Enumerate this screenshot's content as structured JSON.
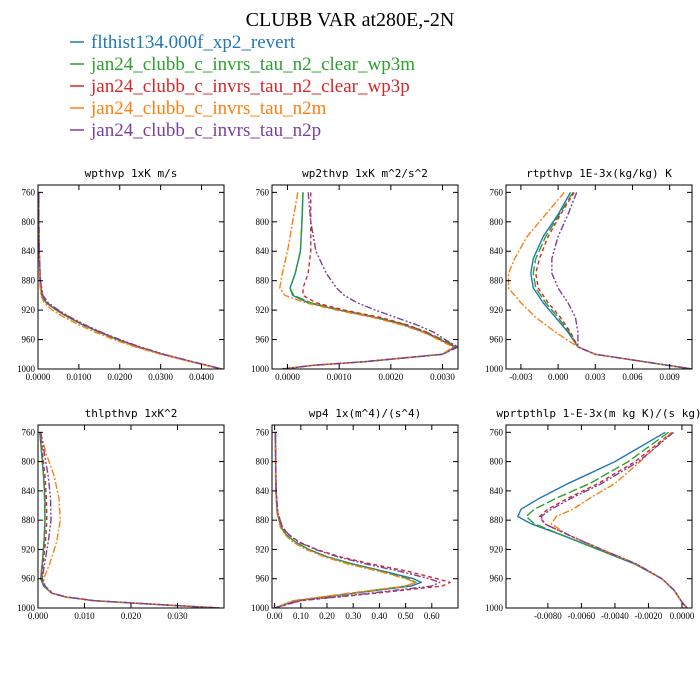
{
  "figure": {
    "title": "CLUBB VAR at280E,-2N",
    "legend": [
      {
        "label": "flthist134.000f_xp2_revert",
        "color": "#1f77b4",
        "dash": "solid"
      },
      {
        "label": "jan24_clubb_c_invrs_tau_n2_clear_wp3m",
        "color": "#2ca02c",
        "dash": "longdash"
      },
      {
        "label": "jan24_clubb_c_invrs_tau_n2_clear_wp3p",
        "color": "#d62728",
        "dash": "dash"
      },
      {
        "label": "jan24_clubb_c_invrs_tau_n2m",
        "color": "#ff7f0e",
        "dash": "dashdot"
      },
      {
        "label": "jan24_clubb_c_invrs_tau_n2p",
        "color": "#7b3fa0",
        "dash": "dashdotdot"
      }
    ]
  },
  "chart_data": [
    {
      "type": "line",
      "title": "wpthvp  1xK m/s",
      "xlim": [
        0,
        0.0455
      ],
      "ylim": [
        1000,
        750
      ],
      "xticks": [
        0,
        0.01,
        0.02,
        0.03,
        0.04
      ],
      "xticklabels": [
        "0.0000",
        "0.0100",
        "0.0200",
        "0.0300",
        "0.0400"
      ],
      "yticks": [
        760,
        800,
        840,
        880,
        920,
        960,
        1000
      ],
      "pressure": [
        760,
        800,
        840,
        880,
        900,
        910,
        920,
        930,
        940,
        950,
        960,
        970,
        980,
        990,
        1000
      ],
      "series": [
        {
          "values": [
            0.0002,
            0.0002,
            0.0003,
            0.0005,
            0.0009,
            0.002,
            0.0045,
            0.0075,
            0.011,
            0.015,
            0.0195,
            0.0245,
            0.0305,
            0.0375,
            0.045
          ]
        },
        {
          "values": [
            0.0002,
            0.0002,
            0.0003,
            0.0005,
            0.001,
            0.0021,
            0.0045,
            0.0075,
            0.011,
            0.015,
            0.0195,
            0.0245,
            0.0305,
            0.0375,
            0.045
          ]
        },
        {
          "values": [
            0.0002,
            0.0002,
            0.0003,
            0.0006,
            0.0011,
            0.0022,
            0.0047,
            0.0078,
            0.0112,
            0.0152,
            0.0197,
            0.0247,
            0.0307,
            0.0377,
            0.045
          ]
        },
        {
          "values": [
            0.0002,
            0.0002,
            0.0003,
            0.0004,
            0.0007,
            0.0015,
            0.0035,
            0.0065,
            0.01,
            0.014,
            0.0185,
            0.0238,
            0.03,
            0.0372,
            0.045
          ]
        },
        {
          "values": [
            0.0002,
            0.0002,
            0.0003,
            0.0006,
            0.0012,
            0.0025,
            0.005,
            0.008,
            0.0115,
            0.0155,
            0.02,
            0.025,
            0.0308,
            0.0378,
            0.045
          ]
        }
      ]
    },
    {
      "type": "line",
      "title": "wp2thvp  1xK m^2/s^2",
      "xlim": [
        -0.0003,
        0.0033
      ],
      "ylim": [
        1000,
        750
      ],
      "xticks": [
        0,
        0.001,
        0.002,
        0.003
      ],
      "xticklabels": [
        "0.0000",
        "0.0010",
        "0.0020",
        "0.0030"
      ],
      "yticks": [
        760,
        800,
        840,
        880,
        920,
        960,
        1000
      ],
      "pressure": [
        760,
        800,
        840,
        870,
        890,
        900,
        910,
        920,
        930,
        940,
        950,
        960,
        970,
        980,
        990,
        995,
        1000
      ],
      "series": [
        {
          "values": [
            0.0003,
            0.00028,
            0.00025,
            0.00015,
            5e-05,
            0.0001,
            0.0004,
            0.001,
            0.0017,
            0.00225,
            0.00265,
            0.00295,
            0.00325,
            0.003,
            0.0015,
            0.0005,
            -0.0001
          ]
        },
        {
          "values": [
            0.0003,
            0.00028,
            0.00025,
            0.00015,
            5e-05,
            0.00012,
            0.00045,
            0.00105,
            0.00175,
            0.0023,
            0.0027,
            0.003,
            0.0033,
            0.003,
            0.0015,
            0.0005,
            -0.0001
          ]
        },
        {
          "values": [
            0.00045,
            0.00045,
            0.00045,
            0.0004,
            0.0003,
            0.0003,
            0.00055,
            0.0011,
            0.0018,
            0.00232,
            0.00268,
            0.00295,
            0.00325,
            0.003,
            0.0015,
            0.0005,
            -0.0001
          ]
        },
        {
          "values": [
            0.0002,
            0.0001,
            0.0,
            -0.0001,
            -0.00015,
            -5e-05,
            0.00035,
            0.00095,
            0.00165,
            0.0022,
            0.00262,
            0.00292,
            0.0032,
            0.003,
            0.0015,
            0.0005,
            -0.0001
          ]
        },
        {
          "values": [
            0.0004,
            0.00045,
            0.00055,
            0.00075,
            0.00095,
            0.0011,
            0.00135,
            0.0017,
            0.0021,
            0.0025,
            0.00283,
            0.00305,
            0.0033,
            0.003,
            0.0015,
            0.0005,
            -0.0001
          ]
        }
      ]
    },
    {
      "type": "line",
      "title": "rtpthvp  1E-3x(kg/kg) K",
      "xlim": [
        -0.0042,
        0.0108
      ],
      "ylim": [
        1000,
        750
      ],
      "xticks": [
        -0.003,
        0,
        0.003,
        0.006,
        0.009
      ],
      "xticklabels": [
        "-0.003",
        "0.000",
        "0.003",
        "0.006",
        "0.009"
      ],
      "yticks": [
        760,
        800,
        840,
        880,
        920,
        960,
        1000
      ],
      "pressure": [
        760,
        790,
        820,
        850,
        870,
        890,
        910,
        930,
        950,
        970,
        980,
        1000
      ],
      "series": [
        {
          "values": [
            0.001,
            0.0,
            -0.0012,
            -0.002,
            -0.0022,
            -0.002,
            -0.0012,
            -0.0002,
            0.0008,
            0.0016,
            0.003,
            0.0108
          ]
        },
        {
          "values": [
            0.0012,
            0.0001,
            -0.001,
            -0.0018,
            -0.002,
            -0.0018,
            -0.001,
            0.0,
            0.0009,
            0.0016,
            0.003,
            0.0108
          ]
        },
        {
          "values": [
            0.0013,
            0.0002,
            -0.0008,
            -0.0015,
            -0.0018,
            -0.0016,
            -0.0008,
            0.0002,
            0.001,
            0.0016,
            0.003,
            0.0108
          ]
        },
        {
          "values": [
            0.0005,
            -0.001,
            -0.0025,
            -0.0035,
            -0.004,
            -0.004,
            -0.003,
            -0.0018,
            -0.0002,
            0.0016,
            0.003,
            0.0108
          ]
        },
        {
          "values": [
            0.0015,
            0.0008,
            0.0,
            -0.0005,
            -0.0005,
            0.0,
            0.0008,
            0.0014,
            0.0016,
            0.0016,
            0.003,
            0.0108
          ]
        }
      ]
    },
    {
      "type": "line",
      "title": "thlpthvp  1xK^2",
      "xlim": [
        0,
        0.04
      ],
      "ylim": [
        1000,
        750
      ],
      "xticks": [
        0,
        0.01,
        0.02,
        0.03
      ],
      "xticklabels": [
        "0.000",
        "0.010",
        "0.020",
        "0.030"
      ],
      "yticks": [
        760,
        800,
        840,
        880,
        920,
        960,
        1000
      ],
      "pressure": [
        760,
        790,
        820,
        850,
        880,
        910,
        940,
        960,
        970,
        980,
        985,
        990,
        995,
        1000
      ],
      "series": [
        {
          "values": [
            0.0004,
            0.0008,
            0.0012,
            0.0015,
            0.0015,
            0.0013,
            0.0009,
            0.0006,
            0.0012,
            0.003,
            0.006,
            0.012,
            0.025,
            0.039
          ]
        },
        {
          "values": [
            0.0004,
            0.0008,
            0.0012,
            0.0014,
            0.0015,
            0.0013,
            0.0009,
            0.0006,
            0.0012,
            0.003,
            0.006,
            0.012,
            0.025,
            0.039
          ]
        },
        {
          "values": [
            0.0005,
            0.001,
            0.0015,
            0.0018,
            0.0019,
            0.0016,
            0.0011,
            0.0008,
            0.0014,
            0.0031,
            0.0061,
            0.0121,
            0.0251,
            0.039
          ]
        },
        {
          "values": [
            0.0005,
            0.0018,
            0.0035,
            0.0045,
            0.0048,
            0.004,
            0.0025,
            0.0012,
            0.0015,
            0.003,
            0.006,
            0.012,
            0.025,
            0.039
          ]
        },
        {
          "values": [
            0.0006,
            0.0014,
            0.0022,
            0.0027,
            0.0028,
            0.0022,
            0.0014,
            0.0009,
            0.0015,
            0.0032,
            0.0062,
            0.0122,
            0.0252,
            0.039
          ]
        }
      ]
    },
    {
      "type": "line",
      "title": "wp4  1x(m^4)/(s^4)",
      "xlim": [
        -0.01,
        0.7
      ],
      "ylim": [
        1000,
        750
      ],
      "xticks": [
        0,
        0.1,
        0.2,
        0.3,
        0.4,
        0.5,
        0.6
      ],
      "xticklabels": [
        "0.00",
        "0.10",
        "0.20",
        "0.30",
        "0.40",
        "0.50",
        "0.60"
      ],
      "yticks": [
        760,
        800,
        840,
        880,
        920,
        960,
        1000
      ],
      "pressure": [
        760,
        800,
        840,
        870,
        890,
        900,
        910,
        920,
        930,
        940,
        950,
        960,
        965,
        970,
        980,
        990,
        1000
      ],
      "series": [
        {
          "values": [
            0.003,
            0.004,
            0.005,
            0.01,
            0.025,
            0.045,
            0.08,
            0.13,
            0.2,
            0.3,
            0.42,
            0.53,
            0.56,
            0.52,
            0.3,
            0.08,
            0.0
          ]
        },
        {
          "values": [
            0.003,
            0.004,
            0.005,
            0.01,
            0.025,
            0.045,
            0.08,
            0.13,
            0.2,
            0.295,
            0.41,
            0.51,
            0.54,
            0.5,
            0.29,
            0.075,
            0.0
          ]
        },
        {
          "values": [
            0.003,
            0.004,
            0.006,
            0.012,
            0.03,
            0.055,
            0.095,
            0.16,
            0.25,
            0.37,
            0.51,
            0.62,
            0.67,
            0.64,
            0.38,
            0.1,
            0.0
          ]
        },
        {
          "values": [
            0.002,
            0.003,
            0.004,
            0.009,
            0.022,
            0.04,
            0.07,
            0.12,
            0.19,
            0.28,
            0.4,
            0.5,
            0.54,
            0.5,
            0.28,
            0.07,
            0.0
          ]
        },
        {
          "values": [
            0.003,
            0.004,
            0.006,
            0.012,
            0.03,
            0.055,
            0.092,
            0.155,
            0.24,
            0.35,
            0.48,
            0.59,
            0.63,
            0.6,
            0.36,
            0.095,
            0.0
          ]
        }
      ]
    },
    {
      "type": "line",
      "title": "wprtpthlp  1-E-3x(m kg K)/(s kg)",
      "xlim": [
        -0.0105,
        0.0006
      ],
      "ylim": [
        1000,
        750
      ],
      "xticks": [
        -0.008,
        -0.006,
        -0.004,
        -0.002,
        0
      ],
      "xticklabels": [
        "-0.0080",
        "-0.0060",
        "-0.0040",
        "-0.0020",
        "0.0000"
      ],
      "yticks": [
        760,
        800,
        840,
        880,
        920,
        960,
        1000
      ],
      "pressure": [
        760,
        800,
        830,
        850,
        865,
        875,
        885,
        900,
        920,
        940,
        960,
        975,
        985,
        992,
        1000
      ],
      "series": [
        {
          "values": [
            -0.001,
            -0.004,
            -0.0068,
            -0.0085,
            -0.0096,
            -0.0098,
            -0.009,
            -0.0072,
            -0.005,
            -0.0028,
            -0.0012,
            -0.0005,
            -0.0002,
            0.0,
            0.0003
          ]
        },
        {
          "values": [
            -0.0008,
            -0.0032,
            -0.0055,
            -0.0075,
            -0.0088,
            -0.0093,
            -0.0088,
            -0.0072,
            -0.005,
            -0.0028,
            -0.0012,
            -0.0005,
            -0.0002,
            0.0,
            0.0003
          ]
        },
        {
          "values": [
            -0.0006,
            -0.0028,
            -0.005,
            -0.0068,
            -0.008,
            -0.0085,
            -0.0082,
            -0.0068,
            -0.0048,
            -0.0027,
            -0.0012,
            -0.0005,
            -0.0002,
            0.0,
            0.0003
          ]
        },
        {
          "values": [
            -0.0006,
            -0.0025,
            -0.004,
            -0.0055,
            -0.0065,
            -0.0075,
            -0.0078,
            -0.0068,
            -0.0048,
            -0.0027,
            -0.0012,
            -0.0005,
            -0.0002,
            0.0,
            0.0003
          ]
        },
        {
          "values": [
            -0.0005,
            -0.0026,
            -0.0048,
            -0.0066,
            -0.0078,
            -0.0084,
            -0.0082,
            -0.0068,
            -0.0048,
            -0.0027,
            -0.0012,
            -0.0005,
            -0.0002,
            0.0,
            0.0003
          ]
        }
      ]
    }
  ]
}
